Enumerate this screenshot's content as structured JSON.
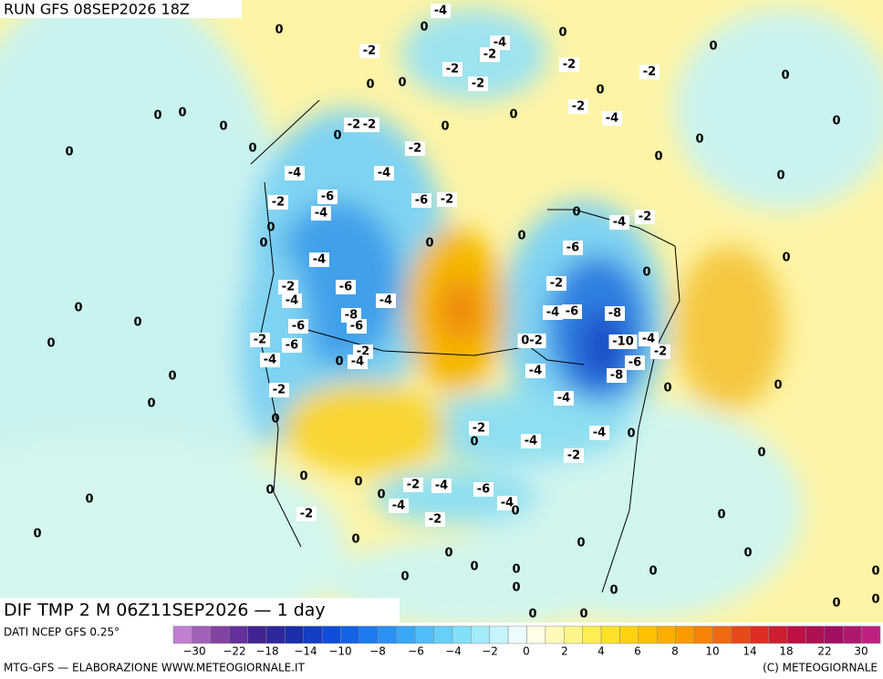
{
  "header": {
    "run": "RUN GFS 08SEP2026 18Z"
  },
  "map": {
    "title": "DIF TMP 2 M 06Z11SEP2026 — 1 day",
    "contour_labels": [
      "0",
      "-2",
      "0",
      "0",
      "-2",
      "-2",
      "-4",
      "-2",
      "0",
      "-4",
      "0",
      "-2",
      "-2",
      "0",
      "-2",
      "-4",
      "0",
      "0",
      "0",
      "0",
      "0",
      "0",
      "0",
      "0",
      "0",
      "0",
      "0",
      "0",
      "-2",
      "-2",
      "0",
      "-2",
      "0",
      "0",
      "-4",
      "-4",
      "-2",
      "-6",
      "-4",
      "-6",
      "-2",
      "0",
      "0",
      "0",
      "0",
      "-4",
      "-2",
      "0",
      "-6",
      "-4",
      "-2",
      "-4",
      "-6",
      "-4",
      "-8",
      "-6",
      "-2",
      "-4",
      "-6",
      "-8",
      "0",
      "0",
      "0",
      "-6",
      "-2",
      "-6",
      "-4",
      "-2",
      "0",
      "-4",
      "0-2",
      "-10",
      "-4",
      "-2",
      "-6",
      "-8",
      "-4",
      "0",
      "0",
      "-2",
      "-4",
      "0",
      "0",
      "0",
      "0",
      "-2",
      "0",
      "-4",
      "-4",
      "0",
      "-2",
      "0",
      "0",
      "0",
      "-2",
      "-4",
      "-6",
      "-4",
      "0",
      "0",
      "-4",
      "-2",
      "0",
      "0",
      "-2",
      "0",
      "0",
      "0",
      "0",
      "0",
      "0",
      "0",
      "0",
      "0",
      "0",
      "0",
      "0",
      "0",
      "0",
      "0",
      "0",
      "0"
    ]
  },
  "legend": {
    "source": "DATI NCEP GFS 0.25°",
    "scale_labels": [
      "−30",
      "−22",
      "−18",
      "−14",
      "−10",
      "−8",
      "−6",
      "−4",
      "−2",
      "0",
      "2",
      "4",
      "6",
      "8",
      "10",
      "14",
      "18",
      "22",
      "30"
    ]
  },
  "footer": {
    "credit": "MTG-GFS — ELABORAZIONE WWW.METEOGIORNALE.IT",
    "copyright": "(C) METEOGIORNALE"
  }
}
